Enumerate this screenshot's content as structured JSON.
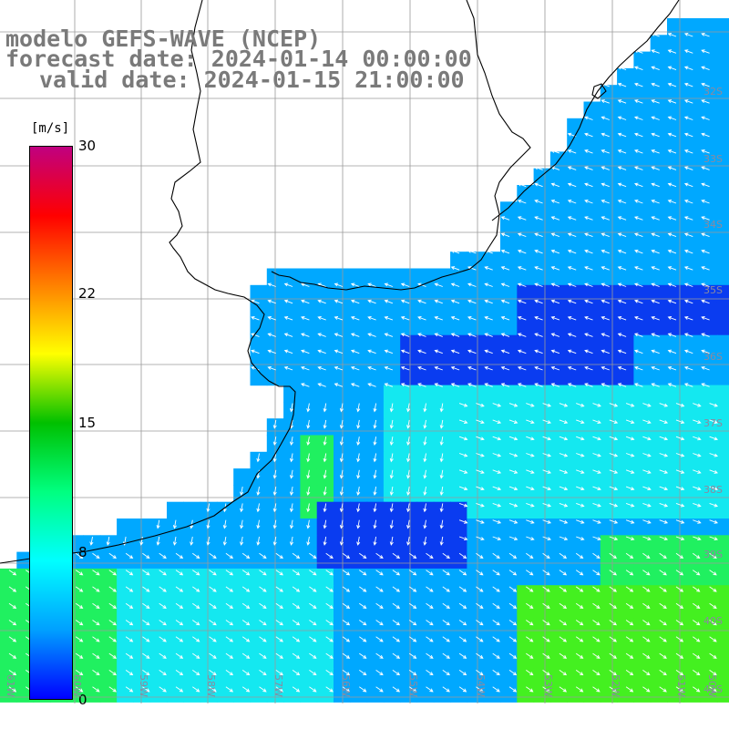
{
  "title": {
    "line1": "modelo GEFS-WAVE (NCEP)",
    "line2": "forecast date: 2024-01-14 00:00:00",
    "line3": "valid date: 2024-01-15 21:00:00"
  },
  "colorbar": {
    "unit": "[m/s]",
    "ticks": [
      "30",
      "22",
      "15",
      "8",
      "0"
    ],
    "tick_values": [
      30,
      22,
      15,
      8,
      0
    ],
    "range": [
      0,
      30
    ],
    "colors": [
      "#0000ff",
      "#00a0ff",
      "#00ffff",
      "#00ff80",
      "#00c000",
      "#ffff00",
      "#ff8000",
      "#ff0000",
      "#c00080"
    ]
  },
  "lat_labels": [
    "32S",
    "33S",
    "34S",
    "35S",
    "36S",
    "37S",
    "38S",
    "39S",
    "40S",
    "41S"
  ],
  "lon_labels": [
    "61W",
    "60W",
    "59W",
    "58W",
    "57W",
    "56W",
    "55W",
    "54W",
    "53W",
    "52W",
    "51W",
    "50W"
  ],
  "map": {
    "land_color": "#ffffff",
    "grid_color": "#9a9a9a",
    "coast_color": "#000000",
    "arrow_color": "#ffffff",
    "field_colors": {
      "low": "#0a3cf0",
      "mid": "#00a8ff",
      "cyan": "#14e8f0",
      "green": "#20f060",
      "bright_green": "#44f020"
    }
  }
}
